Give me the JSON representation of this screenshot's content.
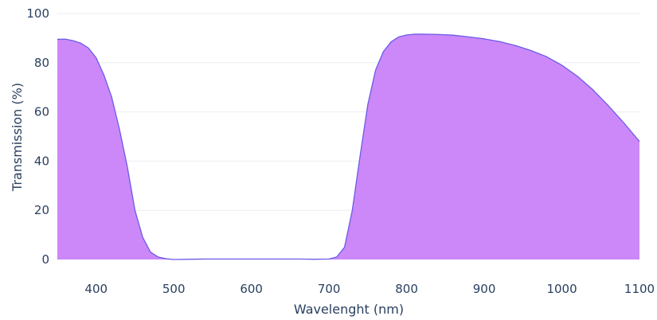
{
  "chart_data": {
    "type": "area",
    "title": "",
    "xlabel": "Wavelenght (nm)",
    "ylabel": "Transmission (%)",
    "xlim": [
      350,
      1100
    ],
    "ylim": [
      0,
      100
    ],
    "xticks": [
      400,
      500,
      600,
      700,
      800,
      900,
      1000,
      1100
    ],
    "yticks": [
      0,
      20,
      40,
      60,
      80,
      100
    ],
    "grid": true,
    "colors": {
      "fill": "#cc88f8",
      "line": "#6a5be8"
    },
    "series": [
      {
        "points": [
          [
            350,
            89.5
          ],
          [
            360,
            89.6
          ],
          [
            370,
            89.0
          ],
          [
            380,
            88.0
          ],
          [
            390,
            86.0
          ],
          [
            400,
            82.0
          ],
          [
            410,
            75.0
          ],
          [
            420,
            66.0
          ],
          [
            430,
            53.0
          ],
          [
            440,
            38.0
          ],
          [
            450,
            20.0
          ],
          [
            460,
            9.0
          ],
          [
            470,
            3.0
          ],
          [
            480,
            1.0
          ],
          [
            490,
            0.3
          ],
          [
            500,
            0.0
          ],
          [
            520,
            0.1
          ],
          [
            540,
            0.2
          ],
          [
            560,
            0.2
          ],
          [
            580,
            0.2
          ],
          [
            600,
            0.2
          ],
          [
            620,
            0.2
          ],
          [
            640,
            0.2
          ],
          [
            660,
            0.2
          ],
          [
            680,
            0.1
          ],
          [
            700,
            0.2
          ],
          [
            710,
            1.0
          ],
          [
            720,
            5.0
          ],
          [
            730,
            20.0
          ],
          [
            740,
            42.0
          ],
          [
            750,
            63.0
          ],
          [
            760,
            77.0
          ],
          [
            770,
            84.5
          ],
          [
            780,
            88.5
          ],
          [
            790,
            90.5
          ],
          [
            800,
            91.3
          ],
          [
            810,
            91.6
          ],
          [
            820,
            91.6
          ],
          [
            840,
            91.5
          ],
          [
            860,
            91.2
          ],
          [
            880,
            90.5
          ],
          [
            900,
            89.7
          ],
          [
            920,
            88.6
          ],
          [
            940,
            87.0
          ],
          [
            960,
            85.0
          ],
          [
            980,
            82.5
          ],
          [
            1000,
            79.0
          ],
          [
            1020,
            74.5
          ],
          [
            1040,
            69.0
          ],
          [
            1060,
            62.5
          ],
          [
            1080,
            55.5
          ],
          [
            1100,
            48.0
          ]
        ]
      }
    ]
  }
}
